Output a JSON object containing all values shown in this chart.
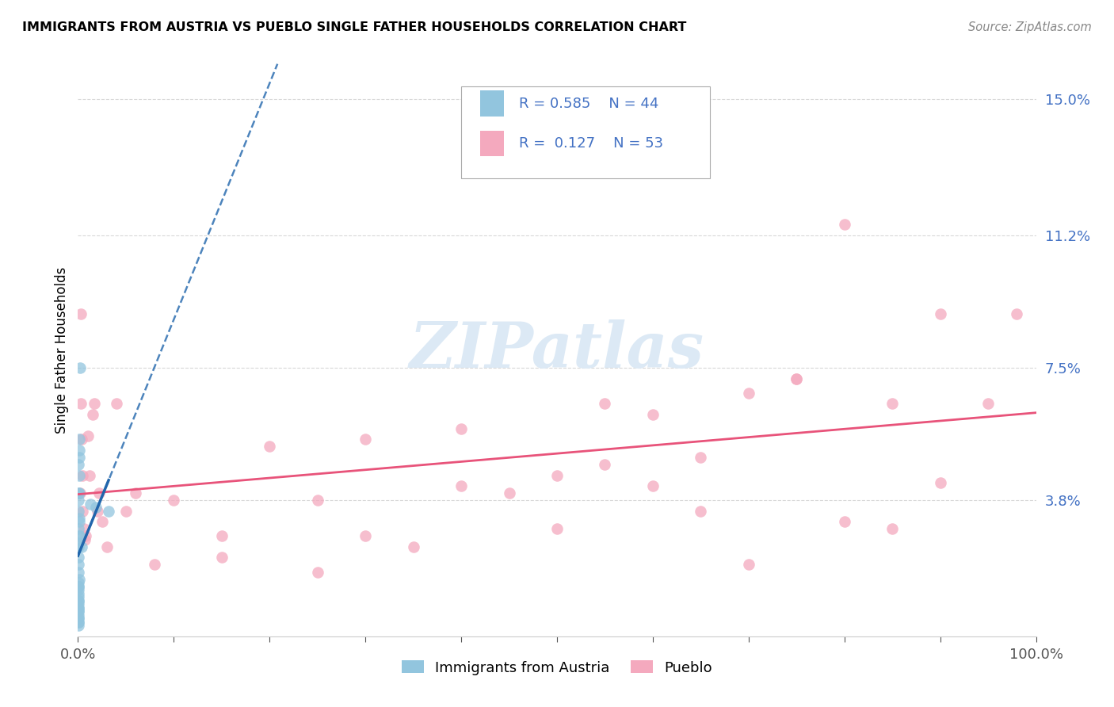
{
  "title": "IMMIGRANTS FROM AUSTRIA VS PUEBLO SINGLE FATHER HOUSEHOLDS CORRELATION CHART",
  "source": "Source: ZipAtlas.com",
  "ylabel": "Single Father Households",
  "xlim": [
    0,
    1.0
  ],
  "ylim": [
    0,
    0.16
  ],
  "yticks": [
    0.038,
    0.075,
    0.112,
    0.15
  ],
  "ytick_labels": [
    "3.8%",
    "7.5%",
    "11.2%",
    "15.0%"
  ],
  "legend_r1": "R = 0.585",
  "legend_n1": "N = 44",
  "legend_r2": "R =  0.127",
  "legend_n2": "N = 53",
  "blue_color": "#92c5de",
  "pink_color": "#f4a9be",
  "blue_line_color": "#2166ac",
  "pink_line_color": "#e8537a",
  "watermark_text": "ZIPatlas",
  "watermark_color": "#dce9f5",
  "legend_label1": "Immigrants from Austria",
  "legend_label2": "Pueblo",
  "austria_x": [
    0.0005,
    0.001,
    0.0015,
    0.0005,
    0.001,
    0.002,
    0.0005,
    0.001,
    0.0005,
    0.0015,
    0.0005,
    0.001,
    0.001,
    0.0005,
    0.0015,
    0.001,
    0.0005,
    0.0005,
    0.0005,
    0.0005,
    0.001,
    0.0005,
    0.0005,
    0.0005,
    0.0005,
    0.0005,
    0.0005,
    0.0005,
    0.0005,
    0.0005,
    0.0005,
    0.0005,
    0.0005,
    0.0005,
    0.0005,
    0.0005,
    0.0005,
    0.0005,
    0.0005,
    0.0005,
    0.013,
    0.019,
    0.032,
    0.004
  ],
  "austria_y": [
    0.048,
    0.052,
    0.055,
    0.038,
    0.04,
    0.075,
    0.04,
    0.05,
    0.035,
    0.045,
    0.03,
    0.032,
    0.028,
    0.026,
    0.033,
    0.028,
    0.025,
    0.022,
    0.02,
    0.018,
    0.016,
    0.015,
    0.014,
    0.014,
    0.013,
    0.012,
    0.011,
    0.01,
    0.01,
    0.009,
    0.008,
    0.008,
    0.007,
    0.007,
    0.006,
    0.005,
    0.005,
    0.004,
    0.004,
    0.003,
    0.037,
    0.036,
    0.035,
    0.025
  ],
  "pueblo_x": [
    0.002,
    0.003,
    0.004,
    0.003,
    0.005,
    0.005,
    0.006,
    0.007,
    0.008,
    0.01,
    0.012,
    0.015,
    0.017,
    0.02,
    0.022,
    0.025,
    0.03,
    0.04,
    0.05,
    0.06,
    0.08,
    0.1,
    0.15,
    0.2,
    0.25,
    0.3,
    0.35,
    0.4,
    0.45,
    0.5,
    0.55,
    0.6,
    0.65,
    0.7,
    0.75,
    0.8,
    0.85,
    0.9,
    0.95,
    0.98,
    0.55,
    0.65,
    0.75,
    0.85,
    0.3,
    0.4,
    0.5,
    0.6,
    0.7,
    0.8,
    0.9,
    0.15,
    0.25
  ],
  "pueblo_y": [
    0.04,
    0.09,
    0.055,
    0.065,
    0.045,
    0.035,
    0.03,
    0.027,
    0.028,
    0.056,
    0.045,
    0.062,
    0.065,
    0.035,
    0.04,
    0.032,
    0.025,
    0.065,
    0.035,
    0.04,
    0.02,
    0.038,
    0.028,
    0.053,
    0.038,
    0.055,
    0.025,
    0.058,
    0.04,
    0.045,
    0.065,
    0.042,
    0.035,
    0.068,
    0.072,
    0.115,
    0.065,
    0.043,
    0.065,
    0.09,
    0.048,
    0.05,
    0.072,
    0.03,
    0.028,
    0.042,
    0.03,
    0.062,
    0.02,
    0.032,
    0.09,
    0.022,
    0.018
  ],
  "grid_color": "#d8d8d8",
  "bg_color": "#ffffff",
  "axis_color": "#4472C4"
}
